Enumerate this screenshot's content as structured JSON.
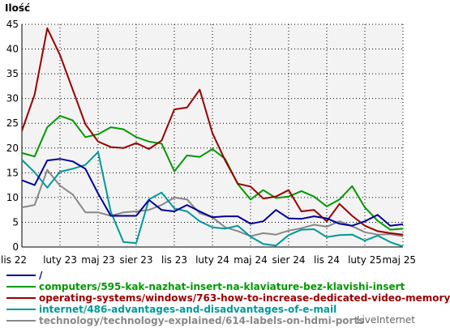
{
  "chart_data": {
    "type": "line",
    "ylabel": "Ilość",
    "ylim": [
      0,
      45
    ],
    "yticks": [
      0,
      5,
      10,
      15,
      20,
      25,
      30,
      35,
      40,
      45
    ],
    "grid": true,
    "x_tick_labels": [
      "lis 22",
      "luty 23",
      "maj 23",
      "sier 23",
      "lis 23",
      "luty 24",
      "maj 24",
      "sier 24",
      "lis 24",
      "luty 25",
      "maj 25"
    ],
    "series": [
      {
        "name": "/",
        "color": "#000099",
        "values": [
          13.5,
          12.5,
          17.5,
          17.8,
          17.3,
          15.8,
          10.8,
          6.3,
          6.3,
          6.3,
          9.5,
          7.5,
          7.2,
          8.5,
          7.2,
          6.0,
          6.2,
          6.2,
          4.7,
          5.2,
          7.5,
          5.8,
          5.7,
          6.2,
          5.8,
          4.7,
          4.3,
          5.2,
          6.5,
          4.3,
          4.6
        ]
      },
      {
        "name": "computers/595-kak-nazhat-insert-na-klaviature-bez-klavishi-insert",
        "color": "#009900",
        "values": [
          19.0,
          18.3,
          24.2,
          26.5,
          25.6,
          22.2,
          22.8,
          24.2,
          23.8,
          22.2,
          21.3,
          20.9,
          15.3,
          18.5,
          18.2,
          19.8,
          17.8,
          12.7,
          9.6,
          11.5,
          9.9,
          10.2,
          11.3,
          10.2,
          8.2,
          9.6,
          12.3,
          8.0,
          5.3,
          3.5,
          3.7
        ]
      },
      {
        "name": "operating-systems/windows/763-how-to-increase-dedicated-video-memory",
        "color": "#990000",
        "values": [
          23.5,
          30.8,
          44.2,
          38.8,
          31.8,
          24.8,
          21.3,
          20.2,
          20.0,
          21.0,
          19.8,
          21.5,
          27.8,
          28.2,
          31.8,
          23.0,
          17.5,
          12.8,
          12.2,
          9.8,
          10.2,
          11.5,
          7.2,
          7.5,
          5.2,
          8.7,
          6.3,
          4.3,
          3.2,
          2.8,
          2.5
        ]
      },
      {
        "name": "internet/486-advantages-and-disadvantages-of-e-mail",
        "color": "#009999",
        "values": [
          17.6,
          15.1,
          12.0,
          15.2,
          15.8,
          16.6,
          19.2,
          7.1,
          1.0,
          0.8,
          9.6,
          11.0,
          7.8,
          7.2,
          5.2,
          4.0,
          3.7,
          4.3,
          2.1,
          0.6,
          0.3,
          2.4,
          3.5,
          3.6,
          2.0,
          2.4,
          2.5,
          1.3,
          2.3,
          1.0,
          0.1
        ]
      },
      {
        "name": "technology/technology-explained/614-labels-on-hdmi-ports",
        "color": "#888888",
        "values": [
          8.0,
          8.5,
          15.6,
          12.4,
          10.6,
          7.0,
          7.0,
          6.3,
          7.0,
          7.2,
          7.5,
          8.5,
          10.0,
          9.6,
          6.8,
          6.0,
          4.0,
          3.2,
          2.2,
          2.8,
          2.5,
          3.3,
          3.8,
          4.5,
          4.1,
          5.2,
          4.2,
          3.0,
          2.5,
          2.6,
          2.2
        ]
      }
    ]
  },
  "brand": "LiveInternet"
}
